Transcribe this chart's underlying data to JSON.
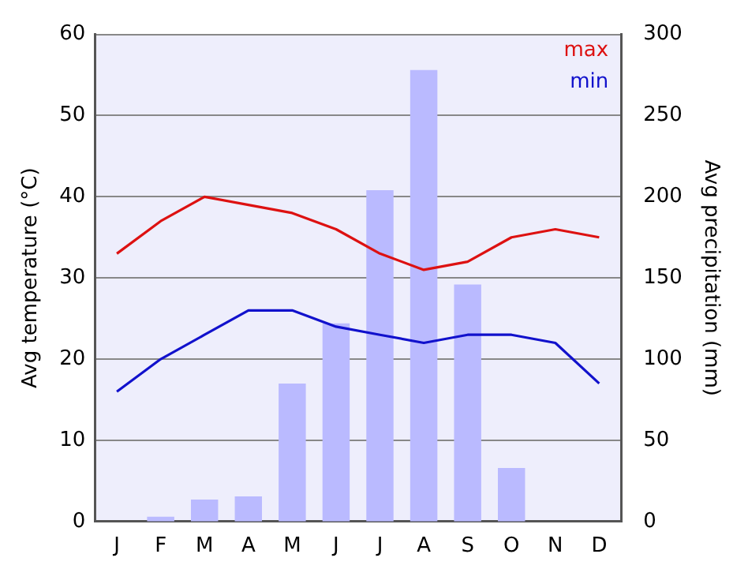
{
  "chart_data": {
    "type": "line",
    "ylabel": "Avg temperature (°C)",
    "y2label": "Avg precipitation (mm)",
    "categories": [
      "J",
      "F",
      "M",
      "A",
      "M",
      "J",
      "J",
      "A",
      "S",
      "O",
      "N",
      "D"
    ],
    "series": [
      {
        "type": "bar",
        "axis": "y2",
        "color": "#babaff",
        "values": [
          0,
          3,
          13.5,
          15.5,
          85,
          122,
          204,
          278,
          146,
          33,
          0,
          0
        ]
      },
      {
        "name": "max",
        "color": "#dd1111",
        "values": [
          33,
          37,
          40,
          39,
          38,
          36,
          33,
          31,
          32,
          35,
          36,
          35
        ]
      },
      {
        "name": "min",
        "color": "#1111cc",
        "values": [
          16,
          20,
          23,
          26,
          26,
          24,
          23,
          22,
          23,
          23,
          22,
          17
        ]
      }
    ],
    "ylim": [
      0,
      60
    ],
    "yticks": [
      0,
      10,
      20,
      30,
      40,
      50,
      60
    ],
    "y2lim": [
      0,
      300
    ],
    "y2ticks": [
      0,
      50,
      100,
      150,
      200,
      250,
      300
    ],
    "grid": "y",
    "legend": "top right",
    "marker": "none"
  }
}
